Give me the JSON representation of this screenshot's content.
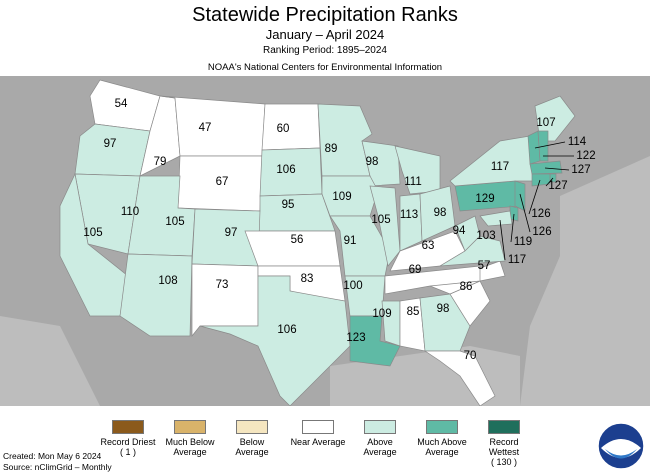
{
  "title": "Statewide Precipitation Ranks",
  "subtitle": "January – April 2024",
  "ranking_period": "Ranking Period: 1895–2024",
  "source_org": "NOAA's National Centers for Environmental Information",
  "created": "Created: Mon May  6 2024",
  "source": "Source: nClimGrid – Monthly",
  "colors": {
    "record_driest": "#8b5a1c",
    "much_below": "#d9b36a",
    "below": "#f5e6c0",
    "near": "#ffffff",
    "above": "#ccece2",
    "much_above": "#5fbaa5",
    "record_wettest": "#1f6f5c",
    "land_other": "#a9a9a9",
    "water": "#bdbdbd"
  },
  "legend": [
    {
      "label": "Record Driest",
      "sub": "( 1 )",
      "color": "#8b5a1c"
    },
    {
      "label": "Much Below Average",
      "sub": "",
      "color": "#d9b36a"
    },
    {
      "label": "Below Average",
      "sub": "",
      "color": "#f5e6c0"
    },
    {
      "label": "Near Average",
      "sub": "",
      "color": "#ffffff"
    },
    {
      "label": "Above Average",
      "sub": "",
      "color": "#ccece2"
    },
    {
      "label": "Much Above Average",
      "sub": "",
      "color": "#5fbaa5"
    },
    {
      "label": "Record Wettest",
      "sub": "( 130 )",
      "color": "#1f6f5c"
    }
  ],
  "states": [
    {
      "name": "WA",
      "rank": "54",
      "category": "near"
    },
    {
      "name": "OR",
      "rank": "97",
      "category": "above"
    },
    {
      "name": "ID",
      "rank": "79",
      "category": "near"
    },
    {
      "name": "MT",
      "rank": "47",
      "category": "near"
    },
    {
      "name": "WY",
      "rank": "67",
      "category": "near"
    },
    {
      "name": "ND",
      "rank": "60",
      "category": "near"
    },
    {
      "name": "SD",
      "rank": "106",
      "category": "above"
    },
    {
      "name": "NE",
      "rank": "95",
      "category": "above"
    },
    {
      "name": "MN",
      "rank": "89",
      "category": "above"
    },
    {
      "name": "WI",
      "rank": "98",
      "category": "above"
    },
    {
      "name": "IA",
      "rank": "109",
      "category": "above"
    },
    {
      "name": "MI",
      "rank": "111",
      "category": "above"
    },
    {
      "name": "NV",
      "rank": "110",
      "category": "above"
    },
    {
      "name": "UT",
      "rank": "105",
      "category": "above"
    },
    {
      "name": "CO",
      "rank": "97",
      "category": "above"
    },
    {
      "name": "CA",
      "rank": "105",
      "category": "above"
    },
    {
      "name": "AZ",
      "rank": "108",
      "category": "above"
    },
    {
      "name": "NM",
      "rank": "73",
      "category": "near"
    },
    {
      "name": "KS",
      "rank": "56",
      "category": "near"
    },
    {
      "name": "OK",
      "rank": "83",
      "category": "near"
    },
    {
      "name": "TX",
      "rank": "106",
      "category": "above"
    },
    {
      "name": "MO",
      "rank": "91",
      "category": "above"
    },
    {
      "name": "IL",
      "rank": "105",
      "category": "above"
    },
    {
      "name": "IN",
      "rank": "113",
      "category": "above"
    },
    {
      "name": "OH",
      "rank": "98",
      "category": "above"
    },
    {
      "name": "AR",
      "rank": "100",
      "category": "above"
    },
    {
      "name": "LA",
      "rank": "123",
      "category": "much_above"
    },
    {
      "name": "MS",
      "rank": "109",
      "category": "above"
    },
    {
      "name": "AL",
      "rank": "85",
      "category": "near"
    },
    {
      "name": "GA",
      "rank": "98",
      "category": "above"
    },
    {
      "name": "FL",
      "rank": "70",
      "category": "near"
    },
    {
      "name": "SC",
      "rank": "86",
      "category": "near"
    },
    {
      "name": "NC",
      "rank": "57",
      "category": "near"
    },
    {
      "name": "TN",
      "rank": "69",
      "category": "near"
    },
    {
      "name": "KY",
      "rank": "63",
      "category": "near"
    },
    {
      "name": "WV",
      "rank": "94",
      "category": "above"
    },
    {
      "name": "VA",
      "rank": "103",
      "category": "above"
    },
    {
      "name": "PA",
      "rank": "129",
      "category": "much_above"
    },
    {
      "name": "NY",
      "rank": "117",
      "category": "above"
    },
    {
      "name": "ME",
      "rank": "107",
      "category": "above"
    },
    {
      "name": "VT",
      "rank": "114",
      "category": "much_above"
    },
    {
      "name": "NH",
      "rank": "122",
      "category": "much_above"
    },
    {
      "name": "MA",
      "rank": "127",
      "category": "much_above"
    },
    {
      "name": "RI",
      "rank": "127",
      "category": "much_above"
    },
    {
      "name": "CT",
      "rank": "126",
      "category": "much_above"
    },
    {
      "name": "NJ",
      "rank": "126",
      "category": "much_above"
    },
    {
      "name": "DE",
      "rank": "119",
      "category": "much_above"
    },
    {
      "name": "MD",
      "rank": "117",
      "category": "above"
    }
  ]
}
